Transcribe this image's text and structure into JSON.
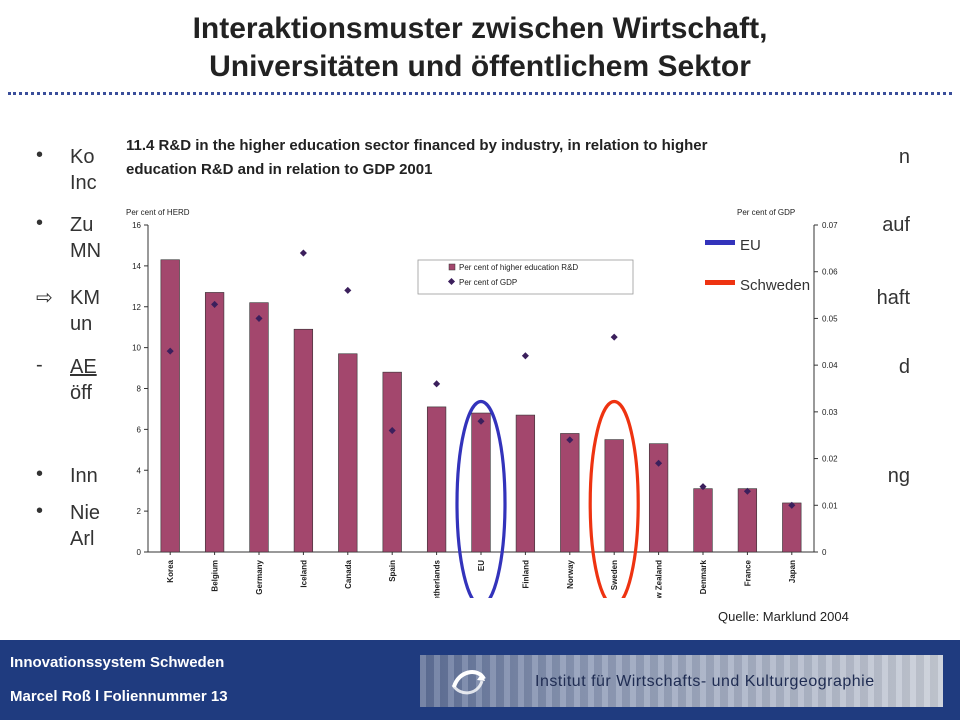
{
  "slide": {
    "title_line1": "Interaktionsmuster zwischen Wirtschaft,",
    "title_line2": "Universitäten und öffentlichem Sektor",
    "source": "Quelle: Marklund 2004",
    "footer_line1": "Innovationssystem Schweden",
    "footer_line2": "Marcel Roß l Foliennummer 13",
    "logo_text": "Institut für Wirtschafts- und Kulturgeographie"
  },
  "bullets": [
    {
      "marker": "•",
      "left": "Ko",
      "left2": "Inc",
      "right": "n"
    },
    {
      "marker": "•",
      "left": "Zu",
      "left2": "MN",
      "right": "auf"
    },
    {
      "marker": "⇨",
      "left": "KM",
      "left2": "un",
      "right": "haft"
    },
    {
      "marker": "-",
      "left": "AE",
      "left2": "öff",
      "right": "d"
    },
    {
      "marker": "•",
      "left": "Inn",
      "left2": "",
      "right": "ng"
    },
    {
      "marker": "•",
      "left": "Nie",
      "left2": "Arl",
      "right": ""
    }
  ],
  "chart_data": {
    "type": "bar",
    "title_line1": "11.4 R&D in the higher education sector financed by industry, in relation to higher",
    "title_line2": "education R&D and in relation to GDP 2001",
    "ylabel_left": "Per cent of HERD",
    "ylabel_right": "Per cent of GDP",
    "ylim_left": [
      0,
      16
    ],
    "ylim_right": [
      0,
      0.07
    ],
    "yticks_left": [
      "0",
      "2",
      "4",
      "6",
      "8",
      "10",
      "12",
      "14",
      "16"
    ],
    "yticks_right": [
      "0",
      "0.01",
      "0.02",
      "0.03",
      "0.04",
      "0.05",
      "0.06",
      "0.07"
    ],
    "categories": [
      "Korea",
      "Belgium",
      "Germany",
      "Iceland",
      "Canada",
      "Spain",
      "Netherlands",
      "EU",
      "Finland",
      "Norway",
      "Sweden",
      "New Zealand",
      "Denmark",
      "France",
      "Japan"
    ],
    "series": [
      {
        "name": "Per cent of higher education R&D",
        "type": "bar",
        "axis": "left",
        "color": "#a3476d",
        "values": [
          14.3,
          12.7,
          12.2,
          10.9,
          9.7,
          8.8,
          7.1,
          6.8,
          6.7,
          5.8,
          5.5,
          5.3,
          3.1,
          3.1,
          2.4
        ]
      },
      {
        "name": "Per cent of GDP",
        "type": "scatter",
        "axis": "right",
        "color": "#3b1f5c",
        "values": [
          0.043,
          0.053,
          0.05,
          0.064,
          0.056,
          0.026,
          0.036,
          0.028,
          0.042,
          0.024,
          0.046,
          0.019,
          0.014,
          0.013,
          0.01
        ]
      }
    ],
    "highlights": [
      {
        "category": "EU",
        "color": "#3333bb"
      },
      {
        "category": "Sweden",
        "color": "#ee3311"
      }
    ],
    "overlay_legend": [
      {
        "label": "EU",
        "color": "#3333bb"
      },
      {
        "label": "Schweden",
        "color": "#ee3311"
      }
    ],
    "grid": false
  }
}
